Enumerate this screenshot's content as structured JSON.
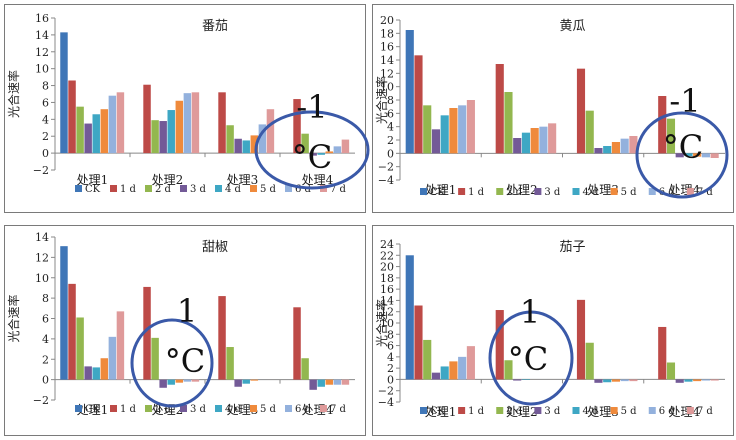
{
  "colors": {
    "series": [
      "#3f76b7",
      "#bd4a47",
      "#93b74f",
      "#735a97",
      "#3ea7c4",
      "#ef8a3c",
      "#93b1dd",
      "#df9a9a"
    ],
    "circle": "#3a59a8",
    "axis": "#888888"
  },
  "legend_labels": [
    "CK",
    "1 d",
    "2 d",
    "3 d",
    "4 d",
    "5 d",
    "6 d",
    "7 d"
  ],
  "chart_data": [
    {
      "type": "bar",
      "title": "番茄",
      "ylabel": "光合速率",
      "ylim": [
        -2,
        16
      ],
      "ystep": 2,
      "categories": [
        "处理1",
        "处理2",
        "处理3",
        "处理4"
      ],
      "series": [
        {
          "name": "CK",
          "values": [
            14.3,
            null,
            null,
            null
          ]
        },
        {
          "name": "1 d",
          "values": [
            8.6,
            8.1,
            7.2,
            6.4
          ]
        },
        {
          "name": "2 d",
          "values": [
            5.5,
            3.9,
            3.3,
            2.3
          ]
        },
        {
          "name": "3 d",
          "values": [
            3.5,
            3.8,
            1.7,
            -0.3
          ]
        },
        {
          "name": "4 d",
          "values": [
            4.6,
            5.1,
            1.5,
            -0.2
          ]
        },
        {
          "name": "5 d",
          "values": [
            5.2,
            6.2,
            2.1,
            0.2
          ]
        },
        {
          "name": "6 d",
          "values": [
            6.8,
            7.1,
            3.4,
            0.8
          ]
        },
        {
          "name": "7 d",
          "values": [
            7.2,
            7.2,
            5.2,
            1.6
          ]
        }
      ],
      "annotation": {
        "line1": "-1",
        "line2": "°C",
        "category": 3
      }
    },
    {
      "type": "bar",
      "title": "黄瓜",
      "ylabel": "光合速率",
      "ylim": [
        -4,
        20
      ],
      "ystep": 2,
      "categories": [
        "处理1",
        "处理2",
        "处理3",
        "处理4"
      ],
      "series": [
        {
          "name": "CK",
          "values": [
            18.5,
            null,
            null,
            null
          ]
        },
        {
          "name": "1 d",
          "values": [
            14.7,
            13.4,
            12.7,
            8.6
          ]
        },
        {
          "name": "2 d",
          "values": [
            7.2,
            9.2,
            6.4,
            5.2
          ]
        },
        {
          "name": "3 d",
          "values": [
            3.6,
            2.3,
            0.8,
            -0.6
          ]
        },
        {
          "name": "4 d",
          "values": [
            5.7,
            3.1,
            1.1,
            -0.4
          ]
        },
        {
          "name": "5 d",
          "values": [
            6.8,
            3.8,
            1.7,
            -0.5
          ]
        },
        {
          "name": "6 d",
          "values": [
            7.2,
            4.0,
            2.2,
            -0.6
          ]
        },
        {
          "name": "7 d",
          "values": [
            8.0,
            4.5,
            2.6,
            -0.7
          ]
        }
      ],
      "annotation": {
        "line1": "-1",
        "line2": "°C",
        "category": 3
      }
    },
    {
      "type": "bar",
      "title": "甜椒",
      "ylabel": "光合速率",
      "ylim": [
        -2,
        14
      ],
      "ystep": 2,
      "categories": [
        "处理1",
        "处理2",
        "处理3",
        "处理4"
      ],
      "series": [
        {
          "name": "CK",
          "values": [
            13.1,
            null,
            null,
            null
          ]
        },
        {
          "name": "1 d",
          "values": [
            9.4,
            9.1,
            8.2,
            7.1
          ]
        },
        {
          "name": "2 d",
          "values": [
            6.1,
            4.1,
            3.2,
            2.1
          ]
        },
        {
          "name": "3 d",
          "values": [
            1.3,
            -0.8,
            -0.7,
            -1.0
          ]
        },
        {
          "name": "4 d",
          "values": [
            1.2,
            -0.5,
            -0.4,
            -0.7
          ]
        },
        {
          "name": "5 d",
          "values": [
            2.1,
            -0.3,
            -0.1,
            -0.5
          ]
        },
        {
          "name": "6 d",
          "values": [
            4.2,
            -0.2,
            0,
            -0.5
          ]
        },
        {
          "name": "7 d",
          "values": [
            6.7,
            -0.2,
            0,
            -0.5
          ]
        }
      ],
      "annotation": {
        "line1": "1",
        "line2": "°C",
        "category": 1
      }
    },
    {
      "type": "bar",
      "title": "茄子",
      "ylabel": "光合速率",
      "ylim": [
        -4,
        24
      ],
      "ystep": 2,
      "categories": [
        "处理1",
        "处理2",
        "处理3",
        "处理4"
      ],
      "series": [
        {
          "name": "CK",
          "values": [
            22.0,
            null,
            null,
            null
          ]
        },
        {
          "name": "1 d",
          "values": [
            13.1,
            12.3,
            14.1,
            9.3
          ]
        },
        {
          "name": "2 d",
          "values": [
            7.0,
            3.4,
            6.5,
            3.0
          ]
        },
        {
          "name": "3 d",
          "values": [
            1.2,
            -0.2,
            -0.6,
            -0.6
          ]
        },
        {
          "name": "4 d",
          "values": [
            2.3,
            -0.1,
            -0.5,
            -0.4
          ]
        },
        {
          "name": "5 d",
          "values": [
            3.2,
            0,
            -0.4,
            -0.3
          ]
        },
        {
          "name": "6 d",
          "values": [
            4.0,
            0,
            -0.3,
            -0.2
          ]
        },
        {
          "name": "7 d",
          "values": [
            5.9,
            0,
            -0.3,
            -0.2
          ]
        }
      ],
      "annotation": {
        "line1": "1",
        "line2": "°C",
        "category": 1
      }
    }
  ]
}
